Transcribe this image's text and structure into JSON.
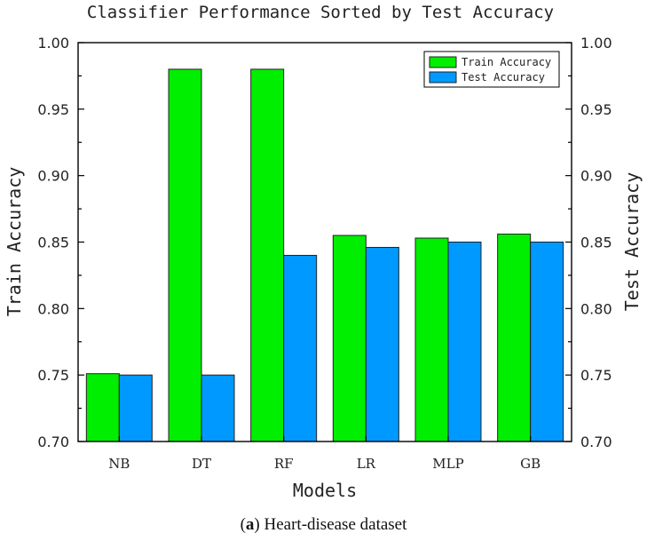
{
  "chart_data": {
    "type": "bar",
    "title": "Classifier Performance Sorted by Test Accuracy",
    "xlabel": "Models",
    "ylabel": "Train Accuracy",
    "ylabel_right": "Test Accuracy",
    "ylim": [
      0.7,
      1.0
    ],
    "yticks": [
      "0.70",
      "0.75",
      "0.80",
      "0.85",
      "0.90",
      "0.95",
      "1.00"
    ],
    "categories": [
      "NB",
      "DT",
      "RF",
      "LR",
      "MLP",
      "GB"
    ],
    "series": [
      {
        "name": "Train Accuracy",
        "color": "#00ee00",
        "values": [
          0.751,
          0.98,
          0.98,
          0.855,
          0.853,
          0.856
        ]
      },
      {
        "name": "Test Accuracy",
        "color": "#0099ff",
        "values": [
          0.75,
          0.75,
          0.84,
          0.846,
          0.85,
          0.85
        ]
      }
    ],
    "legend_position": "top-right",
    "grid": false
  },
  "caption": {
    "label": "a",
    "text": " Heart-disease dataset"
  }
}
